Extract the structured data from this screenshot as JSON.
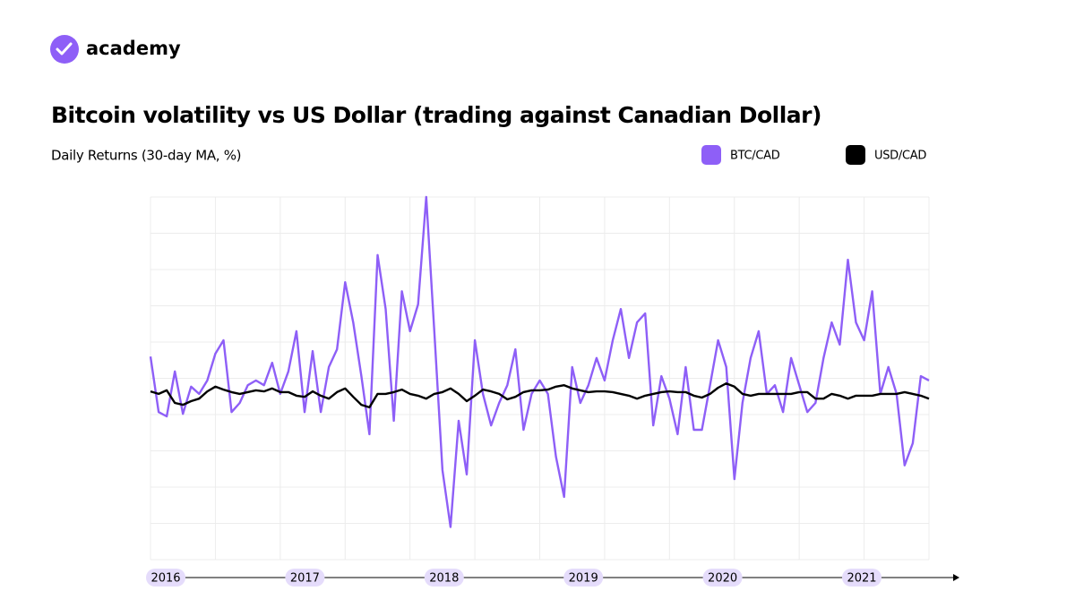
{
  "brand": "academy",
  "chart_data": {
    "type": "line",
    "title": "Bitcoin volatility vs US Dollar (trading against Canadian Dollar)",
    "subtitle": "Daily Returns (30-day MA, %)",
    "x_labels": [
      "2016",
      "2017",
      "2018",
      "2019",
      "2020",
      "2021"
    ],
    "xlim": [
      2016,
      2022
    ],
    "xticks": [
      2016,
      2016.5,
      2017,
      2017.5,
      2018,
      2018.5,
      2019,
      2019.5,
      2020,
      2020.5,
      2021,
      2021.5,
      2022
    ],
    "ylim": [
      -5,
      5
    ],
    "yticks": [
      -5,
      -4,
      -3,
      -2,
      -1,
      0,
      1,
      2,
      3,
      4,
      5
    ],
    "grid": true,
    "legend": "top-right",
    "x": [
      2016,
      2016.0625,
      2016.125,
      2016.1875,
      2016.25,
      2016.3125,
      2016.375,
      2016.4375,
      2016.5,
      2016.5625,
      2016.625,
      2016.6875,
      2016.75,
      2016.8125,
      2016.875,
      2016.9375,
      2017,
      2017.0625,
      2017.125,
      2017.1875,
      2017.25,
      2017.3125,
      2017.375,
      2017.4375,
      2017.5,
      2017.5625,
      2017.625,
      2017.6875,
      2017.75,
      2017.8125,
      2017.875,
      2017.9375,
      2018,
      2018.0625,
      2018.125,
      2018.1875,
      2018.25,
      2018.3125,
      2018.375,
      2018.4375,
      2018.5,
      2018.5625,
      2018.625,
      2018.6875,
      2018.75,
      2018.8125,
      2018.875,
      2018.9375,
      2019,
      2019.0625,
      2019.125,
      2019.1875,
      2019.25,
      2019.3125,
      2019.375,
      2019.4375,
      2019.5,
      2019.5625,
      2019.625,
      2019.6875,
      2019.75,
      2019.8125,
      2019.875,
      2019.9375,
      2020,
      2020.0625,
      2020.125,
      2020.1875,
      2020.25,
      2020.3125,
      2020.375,
      2020.4375,
      2020.5,
      2020.5625,
      2020.625,
      2020.6875,
      2020.75,
      2020.8125,
      2020.875,
      2020.9375,
      2021,
      2021.0625,
      2021.125,
      2021.1875,
      2021.25,
      2021.3125,
      2021.375,
      2021.4375,
      2021.5,
      2021.5625,
      2021.625,
      2021.6875,
      2021.75,
      2021.8125,
      2021.875,
      2021.9375,
      2022
    ],
    "series": [
      {
        "name": "BTC/CAD",
        "color": "#8e5ff7",
        "values": [
          0.6,
          -0.93,
          -1.05,
          0.19,
          -0.98,
          -0.23,
          -0.43,
          -0.06,
          0.68,
          1.05,
          -0.93,
          -0.68,
          -0.19,
          -0.06,
          -0.19,
          0.43,
          -0.43,
          0.19,
          1.3,
          -0.93,
          0.75,
          -0.93,
          0.31,
          0.8,
          2.65,
          1.54,
          0.06,
          -1.54,
          3.4,
          1.91,
          -1.17,
          2.4,
          1.3,
          2.04,
          5.0,
          1.3,
          -2.53,
          -4.1,
          -1.17,
          -2.65,
          1.05,
          -0.43,
          -1.3,
          -0.68,
          -0.19,
          0.8,
          -1.42,
          -0.43,
          -0.06,
          -0.43,
          -2.16,
          -3.27,
          0.31,
          -0.68,
          -0.19,
          0.56,
          -0.06,
          1.05,
          1.91,
          0.56,
          1.54,
          1.79,
          -1.3,
          0.06,
          -0.56,
          -1.54,
          0.31,
          -1.42,
          -1.42,
          -0.19,
          1.05,
          0.31,
          -2.78,
          -0.68,
          0.56,
          1.3,
          -0.43,
          -0.19,
          -0.93,
          0.56,
          -0.19,
          -0.93,
          -0.68,
          0.56,
          1.54,
          0.93,
          3.27,
          1.54,
          1.05,
          2.4,
          -0.43,
          0.31,
          -0.43,
          -2.4,
          -1.79,
          0.06,
          -0.06
        ]
      },
      {
        "name": "USD/CAD",
        "color": "#000000",
        "values": [
          -0.36,
          -0.43,
          -0.33,
          -0.68,
          -0.73,
          -0.63,
          -0.56,
          -0.36,
          -0.23,
          -0.31,
          -0.38,
          -0.43,
          -0.38,
          -0.33,
          -0.36,
          -0.28,
          -0.38,
          -0.38,
          -0.48,
          -0.51,
          -0.36,
          -0.48,
          -0.56,
          -0.38,
          -0.28,
          -0.51,
          -0.73,
          -0.8,
          -0.43,
          -0.43,
          -0.38,
          -0.31,
          -0.43,
          -0.48,
          -0.56,
          -0.43,
          -0.38,
          -0.28,
          -0.43,
          -0.63,
          -0.48,
          -0.31,
          -0.36,
          -0.43,
          -0.58,
          -0.51,
          -0.38,
          -0.33,
          -0.33,
          -0.31,
          -0.23,
          -0.19,
          -0.28,
          -0.33,
          -0.38,
          -0.36,
          -0.36,
          -0.38,
          -0.43,
          -0.48,
          -0.56,
          -0.48,
          -0.43,
          -0.38,
          -0.36,
          -0.38,
          -0.38,
          -0.48,
          -0.53,
          -0.43,
          -0.26,
          -0.14,
          -0.23,
          -0.43,
          -0.48,
          -0.43,
          -0.43,
          -0.43,
          -0.43,
          -0.43,
          -0.38,
          -0.38,
          -0.56,
          -0.56,
          -0.43,
          -0.48,
          -0.56,
          -0.48,
          -0.48,
          -0.48,
          -0.43,
          -0.43,
          -0.43,
          -0.38,
          -0.43,
          -0.48,
          -0.56
        ]
      }
    ]
  }
}
